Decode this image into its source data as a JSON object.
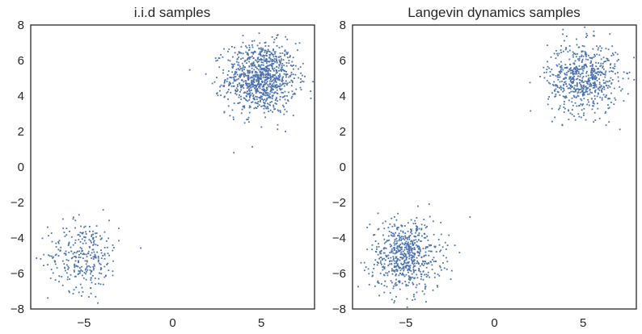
{
  "chart_data": [
    {
      "type": "scatter",
      "title": "i.i.d samples",
      "xlabel": "",
      "ylabel": "",
      "xlim": [
        -8,
        8
      ],
      "ylim": [
        -8,
        8
      ],
      "xticks": [
        "−5",
        "0",
        "5"
      ],
      "xtick_values": [
        -5,
        0,
        5
      ],
      "yticks": [
        "8",
        "6",
        "4",
        "2",
        "0",
        "−2",
        "−4",
        "−6",
        "−8"
      ],
      "ytick_values": [
        8,
        6,
        4,
        2,
        0,
        -2,
        -4,
        -6,
        -8
      ],
      "grid": false,
      "marker_color": "#4c72b0",
      "clusters": [
        {
          "center": [
            5,
            5
          ],
          "std": 1,
          "count": 1000
        },
        {
          "center": [
            -5,
            -5
          ],
          "std": 1,
          "count": 300
        }
      ]
    },
    {
      "type": "scatter",
      "title": "Langevin dynamics samples",
      "xlabel": "",
      "ylabel": "",
      "xlim": [
        -8,
        8
      ],
      "ylim": [
        -8,
        8
      ],
      "xticks": [
        "−5",
        "0",
        "5"
      ],
      "xtick_values": [
        -5,
        0,
        5
      ],
      "yticks": [
        "8",
        "6",
        "4",
        "2",
        "0",
        "−2",
        "−4",
        "−6",
        "−8"
      ],
      "ytick_values": [
        8,
        6,
        4,
        2,
        0,
        -2,
        -4,
        -6,
        -8
      ],
      "grid": false,
      "marker_color": "#4c72b0",
      "clusters": [
        {
          "center": [
            5,
            5
          ],
          "std": 1,
          "count": 650
        },
        {
          "center": [
            -5,
            -5
          ],
          "std": 1,
          "count": 650
        }
      ]
    }
  ]
}
